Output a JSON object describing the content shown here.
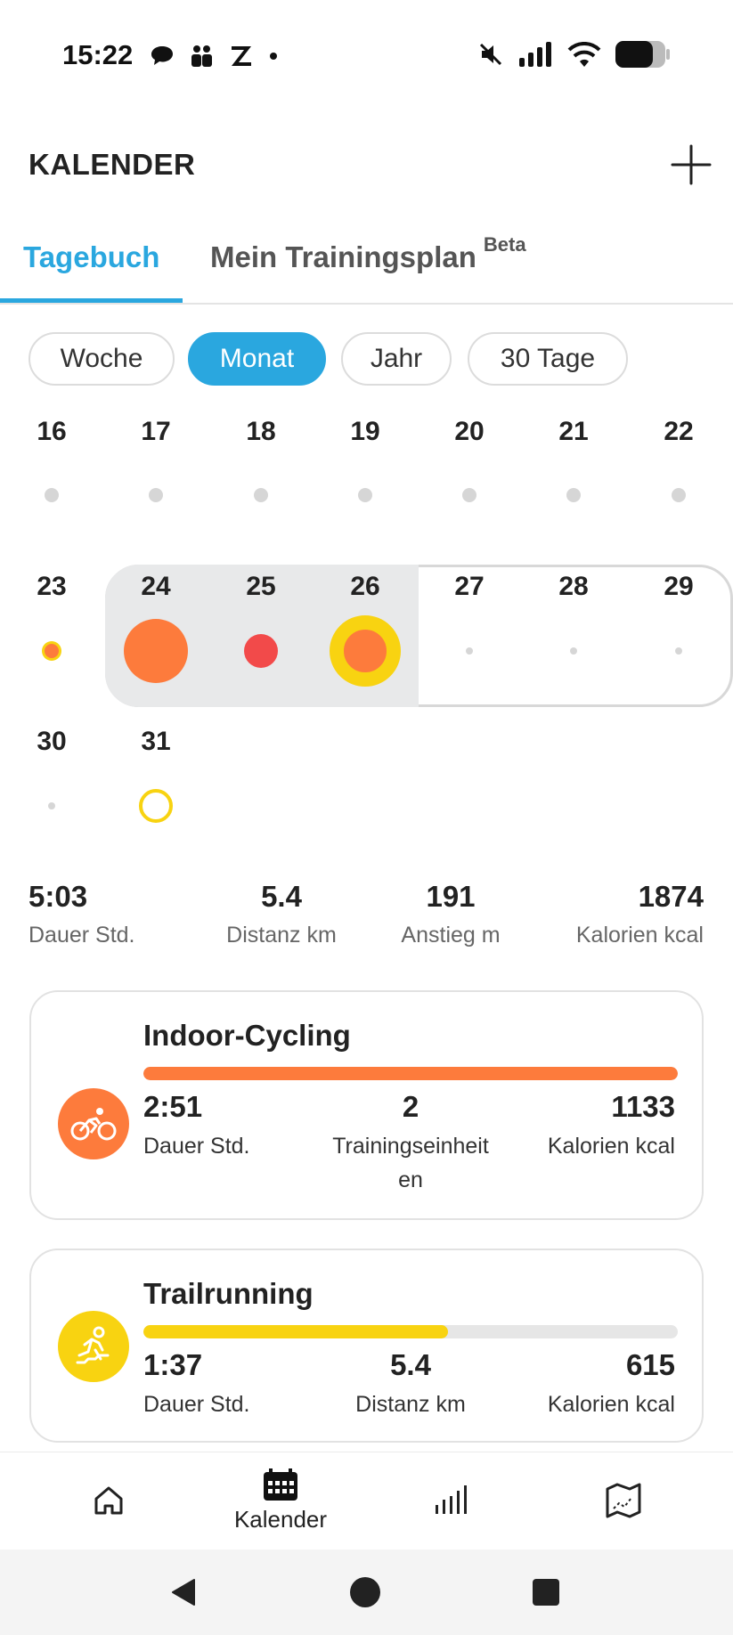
{
  "status_bar": {
    "time": "15:22",
    "left_icons": [
      "chat-icon",
      "contacts-icon",
      "z-app-icon",
      "dot-icon"
    ],
    "right_icons": [
      "mute-icon",
      "signal-icon",
      "wifi-icon",
      "battery-icon"
    ]
  },
  "header": {
    "title": "KALENDER",
    "add_icon": "plus-icon"
  },
  "tabs": [
    {
      "label": "Tagebuch",
      "active": true
    },
    {
      "label": "Mein Trainingsplan",
      "badge": "Beta",
      "active": false
    }
  ],
  "ranges": [
    {
      "label": "Woche",
      "active": false
    },
    {
      "label": "Monat",
      "active": true
    },
    {
      "label": "Jahr",
      "active": false
    },
    {
      "label": "30 Tage",
      "active": false
    }
  ],
  "calendar": {
    "week1": [
      "16",
      "17",
      "18",
      "19",
      "20",
      "21",
      "22"
    ],
    "week2": [
      "23",
      "24",
      "25",
      "26",
      "27",
      "28",
      "29"
    ],
    "week3": [
      "30",
      "31"
    ]
  },
  "summary": [
    {
      "value": "5:03",
      "label": "Dauer Std."
    },
    {
      "value": "5.4",
      "label": "Distanz km"
    },
    {
      "value": "191",
      "label": "Anstieg m"
    },
    {
      "value": "1874",
      "label": "Kalorien kcal"
    }
  ],
  "activities": [
    {
      "name": "Indoor-Cycling",
      "icon": "cycling-icon",
      "color": "#fd7b3c",
      "bar_fraction": 1.0,
      "stats": [
        {
          "value": "2:51",
          "label": "Dauer Std."
        },
        {
          "value": "2",
          "label": "Trainingseinheit\nen"
        },
        {
          "value": "1133",
          "label": "Kalorien kcal"
        }
      ]
    },
    {
      "name": "Trailrunning",
      "icon": "trail-running-icon",
      "color": "#f8d311",
      "bar_fraction": 0.57,
      "stats": [
        {
          "value": "1:37",
          "label": "Dauer Std."
        },
        {
          "value": "5.4",
          "label": "Distanz km"
        },
        {
          "value": "615",
          "label": "Kalorien kcal"
        }
      ]
    }
  ],
  "bottom_nav": [
    {
      "icon": "home-icon",
      "label": ""
    },
    {
      "icon": "calendar-icon",
      "label": "Kalender",
      "active": true
    },
    {
      "icon": "stats-icon",
      "label": ""
    },
    {
      "icon": "map-icon",
      "label": ""
    }
  ],
  "system_nav": [
    "back-icon",
    "home-circle-icon",
    "recents-icon"
  ],
  "colors": {
    "accent": "#2aa7df",
    "cycling": "#fd7b3c",
    "running": "#f8d311",
    "red": "#f24a4a"
  }
}
